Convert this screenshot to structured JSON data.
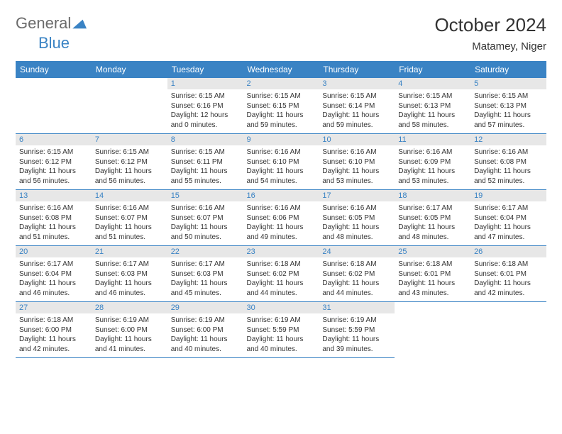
{
  "brand": {
    "text_general": "General",
    "text_blue": "Blue"
  },
  "title": {
    "month": "October 2024",
    "location": "Matamey, Niger"
  },
  "headers": [
    "Sunday",
    "Monday",
    "Tuesday",
    "Wednesday",
    "Thursday",
    "Friday",
    "Saturday"
  ],
  "colors": {
    "header_bg": "#3a83c4",
    "header_text": "#ffffff",
    "daynum_bg": "#e7e7e7",
    "daynum_text": "#3a83c4",
    "border": "#3a83c4",
    "body_text": "#333333",
    "logo_gray": "#6b6b6b",
    "logo_blue": "#3a83c4"
  },
  "weeks": [
    [
      null,
      null,
      {
        "n": "1",
        "sr": "6:15 AM",
        "ss": "6:16 PM",
        "dl": "12 hours and 0 minutes."
      },
      {
        "n": "2",
        "sr": "6:15 AM",
        "ss": "6:15 PM",
        "dl": "11 hours and 59 minutes."
      },
      {
        "n": "3",
        "sr": "6:15 AM",
        "ss": "6:14 PM",
        "dl": "11 hours and 59 minutes."
      },
      {
        "n": "4",
        "sr": "6:15 AM",
        "ss": "6:13 PM",
        "dl": "11 hours and 58 minutes."
      },
      {
        "n": "5",
        "sr": "6:15 AM",
        "ss": "6:13 PM",
        "dl": "11 hours and 57 minutes."
      }
    ],
    [
      {
        "n": "6",
        "sr": "6:15 AM",
        "ss": "6:12 PM",
        "dl": "11 hours and 56 minutes."
      },
      {
        "n": "7",
        "sr": "6:15 AM",
        "ss": "6:12 PM",
        "dl": "11 hours and 56 minutes."
      },
      {
        "n": "8",
        "sr": "6:15 AM",
        "ss": "6:11 PM",
        "dl": "11 hours and 55 minutes."
      },
      {
        "n": "9",
        "sr": "6:16 AM",
        "ss": "6:10 PM",
        "dl": "11 hours and 54 minutes."
      },
      {
        "n": "10",
        "sr": "6:16 AM",
        "ss": "6:10 PM",
        "dl": "11 hours and 53 minutes."
      },
      {
        "n": "11",
        "sr": "6:16 AM",
        "ss": "6:09 PM",
        "dl": "11 hours and 53 minutes."
      },
      {
        "n": "12",
        "sr": "6:16 AM",
        "ss": "6:08 PM",
        "dl": "11 hours and 52 minutes."
      }
    ],
    [
      {
        "n": "13",
        "sr": "6:16 AM",
        "ss": "6:08 PM",
        "dl": "11 hours and 51 minutes."
      },
      {
        "n": "14",
        "sr": "6:16 AM",
        "ss": "6:07 PM",
        "dl": "11 hours and 51 minutes."
      },
      {
        "n": "15",
        "sr": "6:16 AM",
        "ss": "6:07 PM",
        "dl": "11 hours and 50 minutes."
      },
      {
        "n": "16",
        "sr": "6:16 AM",
        "ss": "6:06 PM",
        "dl": "11 hours and 49 minutes."
      },
      {
        "n": "17",
        "sr": "6:16 AM",
        "ss": "6:05 PM",
        "dl": "11 hours and 48 minutes."
      },
      {
        "n": "18",
        "sr": "6:17 AM",
        "ss": "6:05 PM",
        "dl": "11 hours and 48 minutes."
      },
      {
        "n": "19",
        "sr": "6:17 AM",
        "ss": "6:04 PM",
        "dl": "11 hours and 47 minutes."
      }
    ],
    [
      {
        "n": "20",
        "sr": "6:17 AM",
        "ss": "6:04 PM",
        "dl": "11 hours and 46 minutes."
      },
      {
        "n": "21",
        "sr": "6:17 AM",
        "ss": "6:03 PM",
        "dl": "11 hours and 46 minutes."
      },
      {
        "n": "22",
        "sr": "6:17 AM",
        "ss": "6:03 PM",
        "dl": "11 hours and 45 minutes."
      },
      {
        "n": "23",
        "sr": "6:18 AM",
        "ss": "6:02 PM",
        "dl": "11 hours and 44 minutes."
      },
      {
        "n": "24",
        "sr": "6:18 AM",
        "ss": "6:02 PM",
        "dl": "11 hours and 44 minutes."
      },
      {
        "n": "25",
        "sr": "6:18 AM",
        "ss": "6:01 PM",
        "dl": "11 hours and 43 minutes."
      },
      {
        "n": "26",
        "sr": "6:18 AM",
        "ss": "6:01 PM",
        "dl": "11 hours and 42 minutes."
      }
    ],
    [
      {
        "n": "27",
        "sr": "6:18 AM",
        "ss": "6:00 PM",
        "dl": "11 hours and 42 minutes."
      },
      {
        "n": "28",
        "sr": "6:19 AM",
        "ss": "6:00 PM",
        "dl": "11 hours and 41 minutes."
      },
      {
        "n": "29",
        "sr": "6:19 AM",
        "ss": "6:00 PM",
        "dl": "11 hours and 40 minutes."
      },
      {
        "n": "30",
        "sr": "6:19 AM",
        "ss": "5:59 PM",
        "dl": "11 hours and 40 minutes."
      },
      {
        "n": "31",
        "sr": "6:19 AM",
        "ss": "5:59 PM",
        "dl": "11 hours and 39 minutes."
      },
      null,
      null
    ]
  ],
  "labels": {
    "sunrise": "Sunrise: ",
    "sunset": "Sunset: ",
    "daylight": "Daylight: "
  }
}
